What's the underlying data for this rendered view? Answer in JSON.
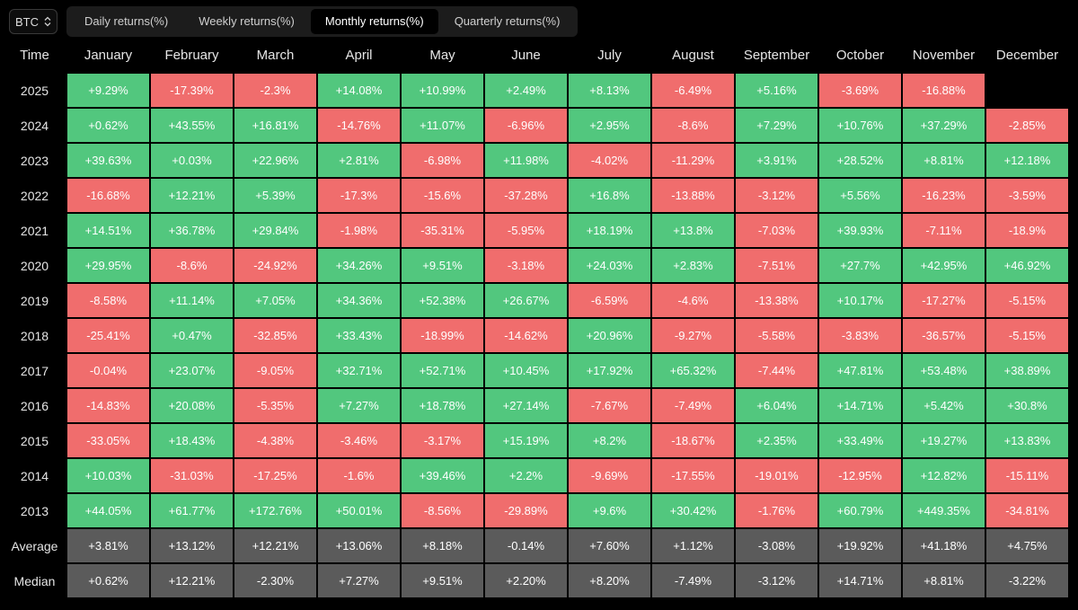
{
  "asset_selector": {
    "value": "BTC",
    "icon": "chevron-up-down-icon"
  },
  "tabs": [
    {
      "label": "Daily returns(%)",
      "active": false
    },
    {
      "label": "Weekly returns(%)",
      "active": false
    },
    {
      "label": "Monthly returns(%)",
      "active": true
    },
    {
      "label": "Quarterly returns(%)",
      "active": false
    }
  ],
  "table": {
    "time_header": "Time",
    "months": [
      "January",
      "February",
      "March",
      "April",
      "May",
      "June",
      "July",
      "August",
      "September",
      "October",
      "November",
      "December"
    ],
    "rows": [
      {
        "year": "2025",
        "values": [
          "+9.29%",
          "-17.39%",
          "-2.3%",
          "+14.08%",
          "+10.99%",
          "+2.49%",
          "+8.13%",
          "-6.49%",
          "+5.16%",
          "-3.69%",
          "-16.88%",
          ""
        ]
      },
      {
        "year": "2024",
        "values": [
          "+0.62%",
          "+43.55%",
          "+16.81%",
          "-14.76%",
          "+11.07%",
          "-6.96%",
          "+2.95%",
          "-8.6%",
          "+7.29%",
          "+10.76%",
          "+37.29%",
          "-2.85%"
        ]
      },
      {
        "year": "2023",
        "values": [
          "+39.63%",
          "+0.03%",
          "+22.96%",
          "+2.81%",
          "-6.98%",
          "+11.98%",
          "-4.02%",
          "-11.29%",
          "+3.91%",
          "+28.52%",
          "+8.81%",
          "+12.18%"
        ]
      },
      {
        "year": "2022",
        "values": [
          "-16.68%",
          "+12.21%",
          "+5.39%",
          "-17.3%",
          "-15.6%",
          "-37.28%",
          "+16.8%",
          "-13.88%",
          "-3.12%",
          "+5.56%",
          "-16.23%",
          "-3.59%"
        ]
      },
      {
        "year": "2021",
        "values": [
          "+14.51%",
          "+36.78%",
          "+29.84%",
          "-1.98%",
          "-35.31%",
          "-5.95%",
          "+18.19%",
          "+13.8%",
          "-7.03%",
          "+39.93%",
          "-7.11%",
          "-18.9%"
        ]
      },
      {
        "year": "2020",
        "values": [
          "+29.95%",
          "-8.6%",
          "-24.92%",
          "+34.26%",
          "+9.51%",
          "-3.18%",
          "+24.03%",
          "+2.83%",
          "-7.51%",
          "+27.7%",
          "+42.95%",
          "+46.92%"
        ]
      },
      {
        "year": "2019",
        "values": [
          "-8.58%",
          "+11.14%",
          "+7.05%",
          "+34.36%",
          "+52.38%",
          "+26.67%",
          "-6.59%",
          "-4.6%",
          "-13.38%",
          "+10.17%",
          "-17.27%",
          "-5.15%"
        ]
      },
      {
        "year": "2018",
        "values": [
          "-25.41%",
          "+0.47%",
          "-32.85%",
          "+33.43%",
          "-18.99%",
          "-14.62%",
          "+20.96%",
          "-9.27%",
          "-5.58%",
          "-3.83%",
          "-36.57%",
          "-5.15%"
        ]
      },
      {
        "year": "2017",
        "values": [
          "-0.04%",
          "+23.07%",
          "-9.05%",
          "+32.71%",
          "+52.71%",
          "+10.45%",
          "+17.92%",
          "+65.32%",
          "-7.44%",
          "+47.81%",
          "+53.48%",
          "+38.89%"
        ]
      },
      {
        "year": "2016",
        "values": [
          "-14.83%",
          "+20.08%",
          "-5.35%",
          "+7.27%",
          "+18.78%",
          "+27.14%",
          "-7.67%",
          "-7.49%",
          "+6.04%",
          "+14.71%",
          "+5.42%",
          "+30.8%"
        ]
      },
      {
        "year": "2015",
        "values": [
          "-33.05%",
          "+18.43%",
          "-4.38%",
          "-3.46%",
          "-3.17%",
          "+15.19%",
          "+8.2%",
          "-18.67%",
          "+2.35%",
          "+33.49%",
          "+19.27%",
          "+13.83%"
        ]
      },
      {
        "year": "2014",
        "values": [
          "+10.03%",
          "-31.03%",
          "-17.25%",
          "-1.6%",
          "+39.46%",
          "+2.2%",
          "-9.69%",
          "-17.55%",
          "-19.01%",
          "-12.95%",
          "+12.82%",
          "-15.11%"
        ]
      },
      {
        "year": "2013",
        "values": [
          "+44.05%",
          "+61.77%",
          "+172.76%",
          "+50.01%",
          "-8.56%",
          "-29.89%",
          "+9.6%",
          "+30.42%",
          "-1.76%",
          "+60.79%",
          "+449.35%",
          "-34.81%"
        ]
      }
    ],
    "summary": [
      {
        "label": "Average",
        "values": [
          "+3.81%",
          "+13.12%",
          "+12.21%",
          "+13.06%",
          "+8.18%",
          "-0.14%",
          "+7.60%",
          "+1.12%",
          "-3.08%",
          "+19.92%",
          "+41.18%",
          "+4.75%"
        ]
      },
      {
        "label": "Median",
        "values": [
          "+0.62%",
          "+12.21%",
          "-2.30%",
          "+7.27%",
          "+9.51%",
          "+2.20%",
          "+8.20%",
          "-7.49%",
          "-3.12%",
          "+14.71%",
          "+8.81%",
          "-3.22%"
        ]
      }
    ]
  },
  "colors": {
    "positive": "#52c77e",
    "negative": "#f06d6d",
    "summary": "#5b5b5b"
  }
}
